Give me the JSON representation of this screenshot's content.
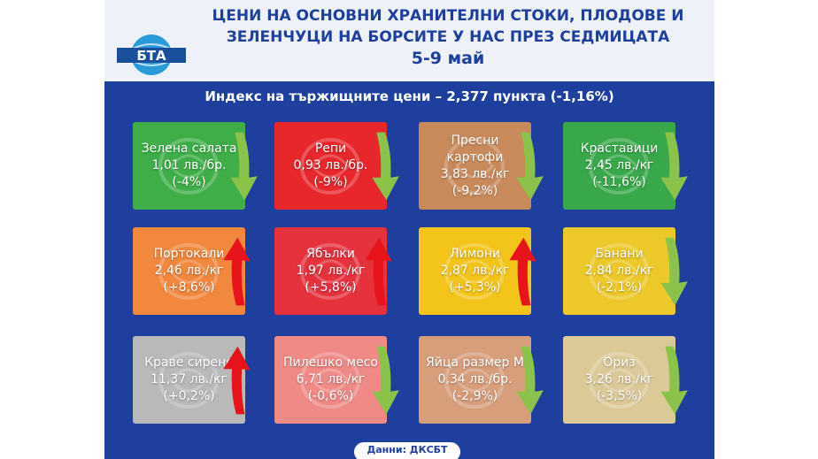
{
  "header": {
    "logo_text": "БТА",
    "title_line1": "ЦЕНИ НА ОСНОВНИ ХРАНИТЕЛНИ СТОКИ, ПЛОДОВЕ И",
    "title_line2": "ЗЕЛЕНЧУЦИ НА БОРСИТЕ У НАС ПРЕЗ СЕДМИЦАТА",
    "date": "5-9 май",
    "index": "Индекс на тържищните цени – 2,377 пункта (-1,16%)"
  },
  "colors": {
    "panel": "#1e3f9e",
    "header_bg": "#eef2f8",
    "arrow_down": "#8bc34a",
    "arrow_up": "#e8141b"
  },
  "items": [
    {
      "name": "Зелена салата",
      "price": "1,01 лв./бр.",
      "change": "(-4%)",
      "trend": "down",
      "color": "#3fae49",
      "icon": "lettuce-icon"
    },
    {
      "name": "Репи",
      "price": "0,93 лв./бр.",
      "change": "(-9%)",
      "trend": "down",
      "color": "#e8272d",
      "icon": "turnip-icon"
    },
    {
      "name": "Пресни картофи",
      "price": "3,83 лв./кг",
      "change": "(-9,2%)",
      "trend": "down",
      "color": "#c98a5b",
      "icon": "potato-icon"
    },
    {
      "name": "Краставици",
      "price": "2,45 лв./кг",
      "change": "(-11,6%)",
      "trend": "down",
      "color": "#39a84a",
      "icon": "cucumber-icon"
    },
    {
      "name": "Портокали",
      "price": "2,46 лв./кг",
      "change": "(+8,6%)",
      "trend": "up",
      "color": "#f2873e",
      "icon": "orange-icon"
    },
    {
      "name": "Ябълки",
      "price": "1,97 лв./кг",
      "change": "(+5,8%)",
      "trend": "up",
      "color": "#e5323d",
      "icon": "apple-icon"
    },
    {
      "name": "Лимони",
      "price": "2,87 лв./кг",
      "change": "(+5,3%)",
      "trend": "up",
      "color": "#f3c41a",
      "icon": "lemon-icon"
    },
    {
      "name": "Банани",
      "price": "2,84 лв./кг",
      "change": "(-2,1%)",
      "trend": "down",
      "color": "#ecc82a",
      "icon": "banana-icon"
    },
    {
      "name": "Краве сирене",
      "price": "11,37 лв./кг",
      "change": "(+0,2%)",
      "trend": "up",
      "color": "#b9b9b9",
      "icon": "cheese-icon"
    },
    {
      "name": "Пилешко месо",
      "price": "6,71 лв./кг",
      "change": "(-0,6%)",
      "trend": "down",
      "color": "#ef8a86",
      "icon": "chicken-icon"
    },
    {
      "name": "Яйца размер М",
      "price": "0,34 лв./бр.",
      "change": "(-2,9%)",
      "trend": "down",
      "color": "#d79e7c",
      "icon": "eggs-icon"
    },
    {
      "name": "Ориз",
      "price": "3,26 лв./кг",
      "change": "(-3,5%)",
      "trend": "down",
      "color": "#dcc998",
      "icon": "rice-icon"
    }
  ],
  "footer": {
    "source": "Данни: ДКСБТ"
  }
}
